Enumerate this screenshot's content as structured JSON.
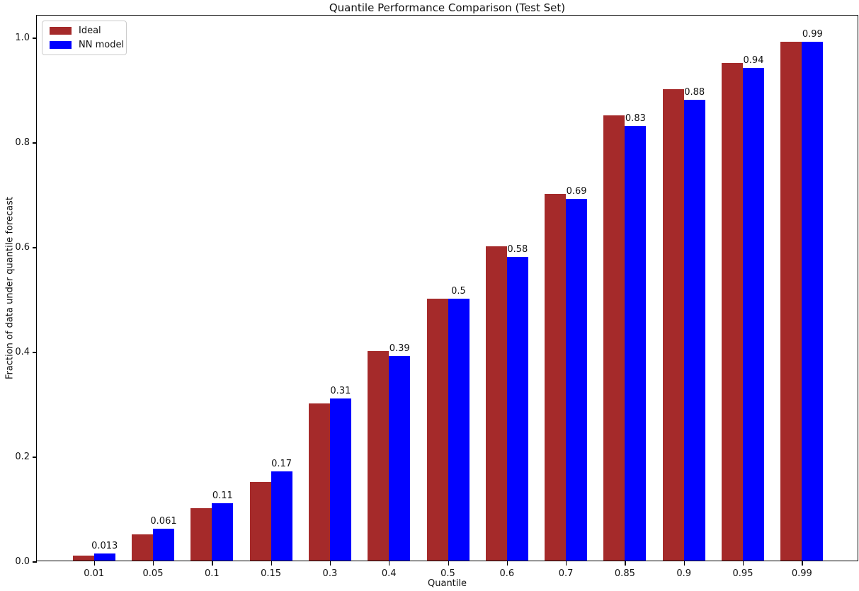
{
  "title": "Quantile Performance Comparison (Test Set)",
  "chart_data": {
    "type": "bar",
    "title": "Quantile Performance Comparison (Test Set)",
    "xlabel": "Quantile",
    "ylabel": "Fraction of data under quantile forecast",
    "categories": [
      "0.01",
      "0.05",
      "0.1",
      "0.15",
      "0.3",
      "0.4",
      "0.5",
      "0.6",
      "0.7",
      "0.85",
      "0.9",
      "0.95",
      "0.99"
    ],
    "series": [
      {
        "name": "Ideal",
        "color": "#A52A2A",
        "values": [
          0.01,
          0.05,
          0.1,
          0.15,
          0.3,
          0.4,
          0.5,
          0.6,
          0.7,
          0.85,
          0.9,
          0.95,
          0.99
        ]
      },
      {
        "name": "NN model",
        "color": "#0000FF",
        "values": [
          0.013,
          0.061,
          0.11,
          0.17,
          0.31,
          0.39,
          0.5,
          0.58,
          0.69,
          0.83,
          0.88,
          0.94,
          0.99
        ]
      }
    ],
    "bar_labels": [
      "0.013",
      "0.061",
      "0.11",
      "0.17",
      "0.31",
      "0.39",
      "0.5",
      "0.58",
      "0.69",
      "0.83",
      "0.88",
      "0.94",
      "0.99"
    ],
    "bar_labels_on_series": "NN model",
    "yticks": [
      "0.0",
      "0.2",
      "0.4",
      "0.6",
      "0.8",
      "1.0"
    ],
    "ylim": [
      0.0,
      1.043
    ],
    "grid": false,
    "legend_position": "upper-left",
    "axis_color": "#000000",
    "background_color": "#ffffff"
  }
}
